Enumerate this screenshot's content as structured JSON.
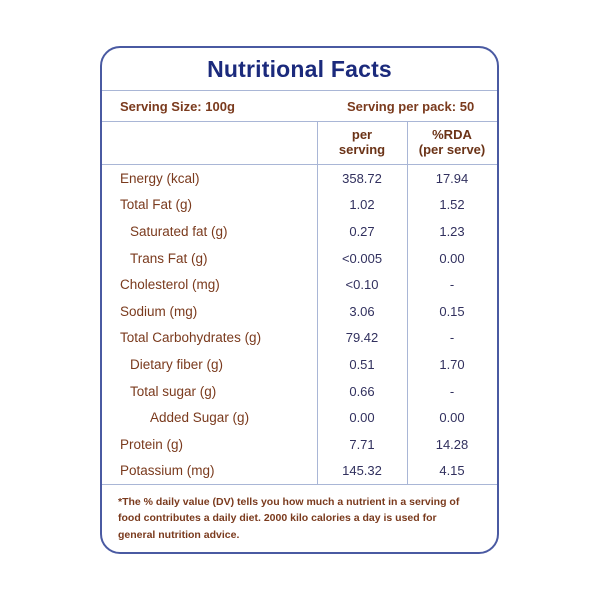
{
  "title": "Nutritional Facts",
  "serving": {
    "size_label": "Serving Size: 100g",
    "pack_label": "Serving per pack: 50"
  },
  "table": {
    "header": {
      "per_serving_line1": "per",
      "per_serving_line2": "serving",
      "rda_line1": "%RDA",
      "rda_line2": "(per serve)"
    },
    "rows": [
      {
        "label": "Energy (kcal)",
        "per_serving": "358.72",
        "rda": "17.94"
      },
      {
        "label": "Total Fat (g)",
        "per_serving": "1.02",
        "rda": "1.52"
      },
      {
        "label": "Saturated fat (g)",
        "per_serving": "0.27",
        "rda": "1.23"
      },
      {
        "label": "Trans Fat (g)",
        "per_serving": "<0.005",
        "rda": "0.00"
      },
      {
        "label": "Cholesterol (mg)",
        "per_serving": "<0.10",
        "rda": "-"
      },
      {
        "label": "Sodium (mg)",
        "per_serving": "3.06",
        "rda": "0.15"
      },
      {
        "label": "Total Carbohydrates  (g)",
        "per_serving": "79.42",
        "rda": "-"
      },
      {
        "label": "Dietary fiber (g)",
        "per_serving": "0.51",
        "rda": "1.70"
      },
      {
        "label": "Total sugar (g)",
        "per_serving": "0.66",
        "rda": "-"
      },
      {
        "label": "Added Sugar (g)",
        "per_serving": "0.00",
        "rda": "0.00"
      },
      {
        "label": "Protein (g)",
        "per_serving": "7.71",
        "rda": "14.28"
      },
      {
        "label": "Potassium (mg)",
        "per_serving": "145.32",
        "rda": "4.15"
      }
    ]
  },
  "footnote": "*The % daily value (DV) tells you how much a nutrient in a serving of food contributes a daily diet. 2000 kilo calories a day is used for general nutrition advice.",
  "colors": {
    "border": "#4a5aa2",
    "title": "#1b2a7c",
    "label_text": "#7a3a1d",
    "value_text": "#31305e",
    "divider": "#a9b6d6"
  }
}
